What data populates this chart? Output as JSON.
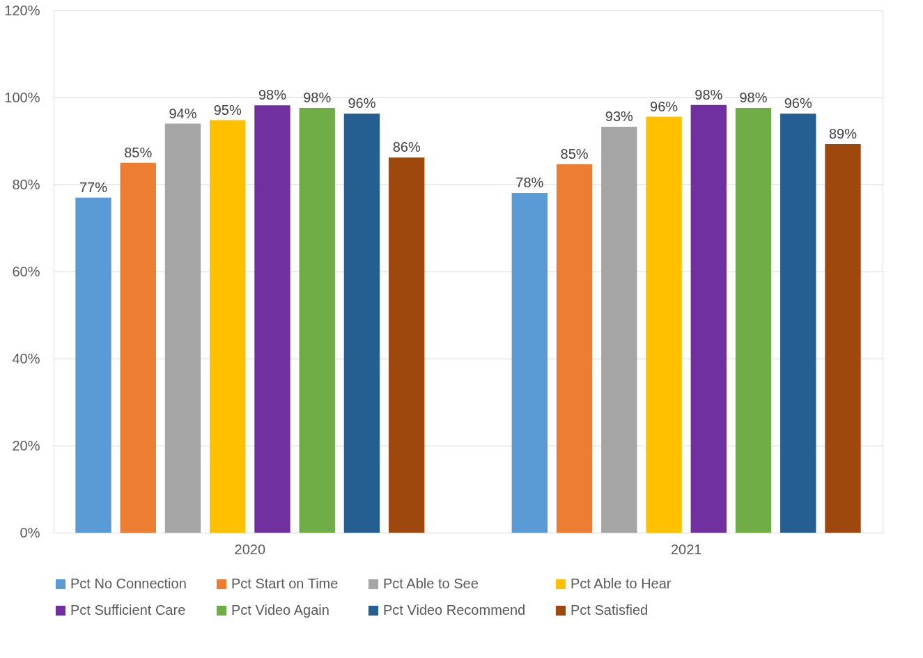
{
  "chart_data": {
    "type": "bar",
    "categories": [
      "2020",
      "2021"
    ],
    "series": [
      {
        "name": "Pct No Connection",
        "color": "#5b9bd5",
        "values": [
          77,
          78.1
        ],
        "value_labels": [
          "77%",
          "78%"
        ]
      },
      {
        "name": "Pct Start on Time",
        "color": "#ed7d31",
        "values": [
          85,
          84.7
        ],
        "value_labels": [
          "85%",
          "85%"
        ]
      },
      {
        "name": "Pct Able to See",
        "color": "#a5a5a5",
        "values": [
          94,
          93.3
        ],
        "value_labels": [
          "94%",
          "93%"
        ]
      },
      {
        "name": "Pct Able to Hear",
        "color": "#ffc000",
        "values": [
          94.8,
          95.6
        ],
        "value_labels": [
          "95%",
          "96%"
        ]
      },
      {
        "name": "Pct Sufficient Care",
        "color": "#7030a0",
        "values": [
          98.2,
          98.3
        ],
        "value_labels": [
          "98%",
          "98%"
        ]
      },
      {
        "name": "Pct Video Again",
        "color": "#70ad47",
        "values": [
          97.6,
          97.6
        ],
        "value_labels": [
          "98%",
          "98%"
        ]
      },
      {
        "name": "Pct Video Recommend",
        "color": "#255e91",
        "values": [
          96.3,
          96.3
        ],
        "value_labels": [
          "96%",
          "96%"
        ]
      },
      {
        "name": "Pct Satisfied",
        "color": "#9e480e",
        "values": [
          86.2,
          89.3
        ],
        "value_labels": [
          "86%",
          "89%"
        ]
      }
    ],
    "ylim": [
      0,
      120
    ],
    "yticks": [
      {
        "value": 0,
        "label": "0%"
      },
      {
        "value": 20,
        "label": "20%"
      },
      {
        "value": 40,
        "label": "40%"
      },
      {
        "value": 60,
        "label": "60%"
      },
      {
        "value": 80,
        "label": "80%"
      },
      {
        "value": 100,
        "label": "100%"
      },
      {
        "value": 120,
        "label": "120%"
      }
    ],
    "grid": "y",
    "legend": "bottom"
  }
}
